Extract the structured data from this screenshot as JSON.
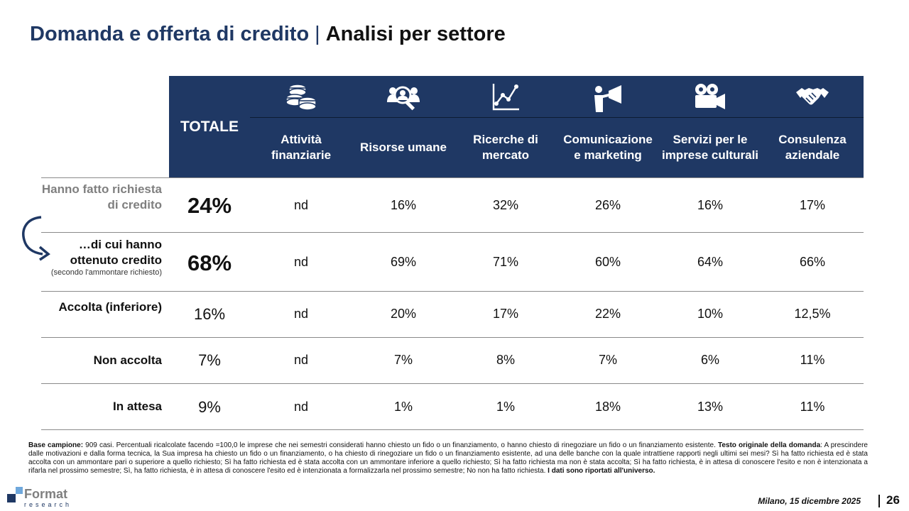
{
  "title": {
    "part1": "Domanda e offerta di credito",
    "separator": "|",
    "part2": "Analisi per settore"
  },
  "colors": {
    "header_bg": "#1f3864",
    "accent": "#1f3864",
    "muted_label": "#7f7f7f"
  },
  "chart_data": {
    "type": "table",
    "total_header": "TOTALE",
    "columns": [
      {
        "label": "Attività finanziarie",
        "icon": "coins-icon"
      },
      {
        "label": "Risorse umane",
        "icon": "people-search-icon"
      },
      {
        "label": "Ricerche di mercato",
        "icon": "line-chart-icon"
      },
      {
        "label": "Comunicazione e marketing",
        "icon": "megaphone-person-icon"
      },
      {
        "label": "Servizi per le imprese culturali",
        "icon": "film-camera-icon"
      },
      {
        "label": "Consulenza aziendale",
        "icon": "handshake-icon"
      }
    ],
    "rows": [
      {
        "label": "Hanno fatto richiesta di credito",
        "sublabel": "",
        "total": "24%",
        "values": [
          "nd",
          "16%",
          "32%",
          "26%",
          "16%",
          "17%"
        ]
      },
      {
        "label": "…di cui hanno ottenuto credito",
        "sublabel": "(secondo l'ammontare richiesto)",
        "total": "68%",
        "values": [
          "nd",
          "69%",
          "71%",
          "60%",
          "64%",
          "66%"
        ]
      },
      {
        "label": "Accolta (inferiore)",
        "sublabel": "",
        "total": "16%",
        "values": [
          "nd",
          "20%",
          "17%",
          "22%",
          "10%",
          "12,5%"
        ]
      },
      {
        "label": "Non accolta",
        "sublabel": "",
        "total": "7%",
        "values": [
          "nd",
          "7%",
          "8%",
          "7%",
          "6%",
          "11%"
        ]
      },
      {
        "label": "In attesa",
        "sublabel": "",
        "total": "9%",
        "values": [
          "nd",
          "1%",
          "1%",
          "18%",
          "13%",
          "11%"
        ]
      }
    ]
  },
  "footnote": {
    "base_label": "Base campione:",
    "base_text": " 909 casi. Percentuali ricalcolate facendo =100,0 le imprese che nei semestri considerati hanno chiesto un fido o un finanziamento, o hanno chiesto di rinegoziare un fido o un finanziamento esistente. ",
    "question_label": "Testo originale della domanda",
    "question_text": ": A prescindere dalle motivazioni e dalla  forma tecnica, la Sua impresa ha chiesto un fido  o un finanziamento, o ha chiesto di rinegoziare un fido o un finanziamento esistente, ad una delle banche con la quale intrattiene rapporti negli ultimi sei mesi?  Sì ha fatto richiesta ed è stata accolta con un ammontare pari o superiore a quello richiesto; Sì ha fatto richiesta ed è stata accolta con un ammontare inferiore a quello richiesto; Sì ha fatto richiesta ma non è stata accolta; Sì ha fatto richiesta, è in attesa di conoscere l'esito e non è intenzionata a rifarla nel prossimo semestre; Sì, ha fatto richiesta, è in attesa di conoscere l'esito ed è intenzionata a formalizzarla nel prossimo semestre; No non ha fatto richiesta. ",
    "closing": "I dati sono riportati all'universo."
  },
  "logo": {
    "name": "Format",
    "sub": "research"
  },
  "footer": {
    "date": "Milano, 15 dicembre 2025",
    "page": "26"
  }
}
